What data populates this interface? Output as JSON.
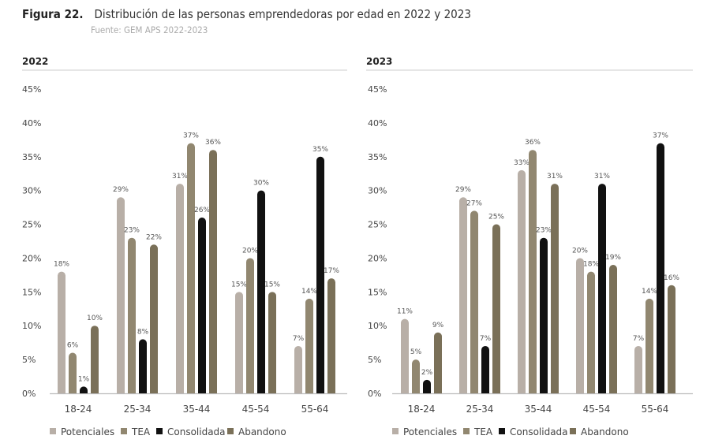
{
  "figure_label": "Figura 22.",
  "title": "Distribución de las personas emprendedoras por edad en 2022 y 2023",
  "source": "Fuente: GEM APS 2022-2023",
  "colors": {
    "Potenciales": "#b8afa7",
    "TEA": "#918770",
    "Consolidada": "#111111",
    "Abandono": "#7a7058"
  },
  "chart_data": [
    {
      "type": "bar",
      "title": "2022",
      "categories": [
        "18-24",
        "25-34",
        "35-44",
        "45-54",
        "55-64"
      ],
      "ylim": [
        0,
        45
      ],
      "yticks": [
        "0%",
        "5%",
        "10%",
        "15%",
        "20%",
        "25%",
        "30%",
        "35%",
        "40%",
        "45%"
      ],
      "legend": "bottom",
      "series": [
        {
          "name": "Potenciales",
          "values": [
            18,
            29,
            31,
            15,
            7
          ]
        },
        {
          "name": "TEA",
          "values": [
            6,
            23,
            37,
            20,
            14
          ]
        },
        {
          "name": "Consolidada",
          "values": [
            1,
            8,
            26,
            30,
            35
          ]
        },
        {
          "name": "Abandono",
          "values": [
            10,
            22,
            36,
            15,
            17
          ]
        }
      ]
    },
    {
      "type": "bar",
      "title": "2023",
      "categories": [
        "18-24",
        "25-34",
        "35-44",
        "45-54",
        "55-64"
      ],
      "ylim": [
        0,
        45
      ],
      "yticks": [
        "0%",
        "5%",
        "10%",
        "15%",
        "20%",
        "25%",
        "30%",
        "35%",
        "40%",
        "45%"
      ],
      "legend": "bottom",
      "series": [
        {
          "name": "Potenciales",
          "values": [
            11,
            29,
            33,
            20,
            7
          ]
        },
        {
          "name": "TEA",
          "values": [
            5,
            27,
            36,
            18,
            14
          ]
        },
        {
          "name": "Consolidada",
          "values": [
            2,
            7,
            23,
            31,
            37
          ]
        },
        {
          "name": "Abandono",
          "values": [
            9,
            25,
            31,
            19,
            16
          ]
        }
      ]
    }
  ]
}
